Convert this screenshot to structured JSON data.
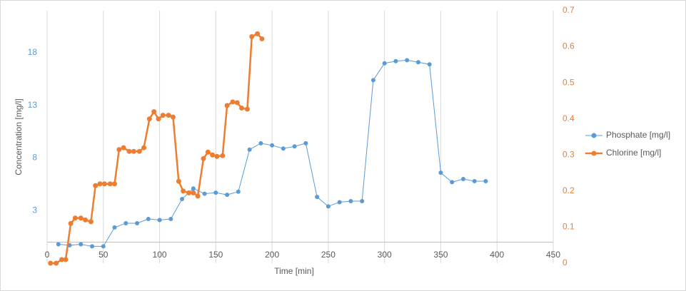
{
  "chart_data": {
    "type": "line",
    "xlabel": "Time [min]",
    "ylabel": "Concentration [mg/l]",
    "xlim": [
      0,
      450
    ],
    "xticks": [
      0,
      50,
      100,
      150,
      200,
      250,
      300,
      350,
      400,
      450
    ],
    "ylim": [
      -2,
      22
    ],
    "yticks": [
      3,
      8,
      13,
      18
    ],
    "y2lim": [
      0,
      0.7
    ],
    "y2ticks": [
      0,
      0.1,
      0.2,
      0.3,
      0.4,
      0.5,
      0.6,
      0.7
    ],
    "grid": true,
    "legend": "right",
    "series": [
      {
        "name": "Phosphate [mg/l]",
        "color": "#5b9bd5",
        "axis": "y",
        "x": [
          10,
          20,
          30,
          40,
          50,
          60,
          70,
          80,
          90,
          100,
          110,
          120,
          130,
          140,
          150,
          160,
          170,
          180,
          190,
          200,
          210,
          220,
          230,
          240,
          250,
          260,
          270,
          280,
          290,
          300,
          310,
          320,
          330,
          340,
          350,
          360,
          370,
          380,
          390
        ],
        "values": [
          -0.2,
          -0.3,
          -0.2,
          -0.4,
          -0.4,
          1.4,
          1.8,
          1.8,
          2.2,
          2.1,
          2.2,
          4.1,
          5.1,
          4.6,
          4.7,
          4.5,
          4.8,
          8.8,
          9.4,
          9.2,
          8.9,
          9.1,
          9.4,
          4.3,
          3.4,
          3.8,
          3.9,
          3.9,
          15.4,
          17.0,
          17.2,
          17.3,
          17.1,
          16.9,
          6.6,
          5.7,
          6.0,
          5.8,
          5.8
        ]
      },
      {
        "name": "Chlorine [mg/l]",
        "color": "#ed7d31",
        "axis": "y2",
        "x": [
          3,
          8,
          13,
          16.5,
          21,
          25,
          30,
          34,
          39,
          43,
          47,
          51,
          56,
          60,
          64,
          68,
          73,
          77,
          82,
          86,
          91,
          95,
          99,
          103,
          108,
          112,
          117,
          121,
          126,
          130,
          134,
          139,
          143,
          147,
          151,
          156,
          160,
          165,
          169,
          173,
          178,
          182,
          187,
          191
        ],
        "values": [
          0,
          0,
          0.01,
          0.01,
          0.11,
          0.125,
          0.125,
          0.12,
          0.115,
          0.215,
          0.22,
          0.22,
          0.22,
          0.22,
          0.315,
          0.32,
          0.31,
          0.31,
          0.31,
          0.32,
          0.4,
          0.42,
          0.4,
          0.41,
          0.41,
          0.405,
          0.227,
          0.2,
          0.195,
          0.195,
          0.186,
          0.29,
          0.308,
          0.3,
          0.296,
          0.298,
          0.437,
          0.447,
          0.445,
          0.43,
          0.427,
          0.628,
          0.636,
          0.622
        ]
      }
    ]
  }
}
